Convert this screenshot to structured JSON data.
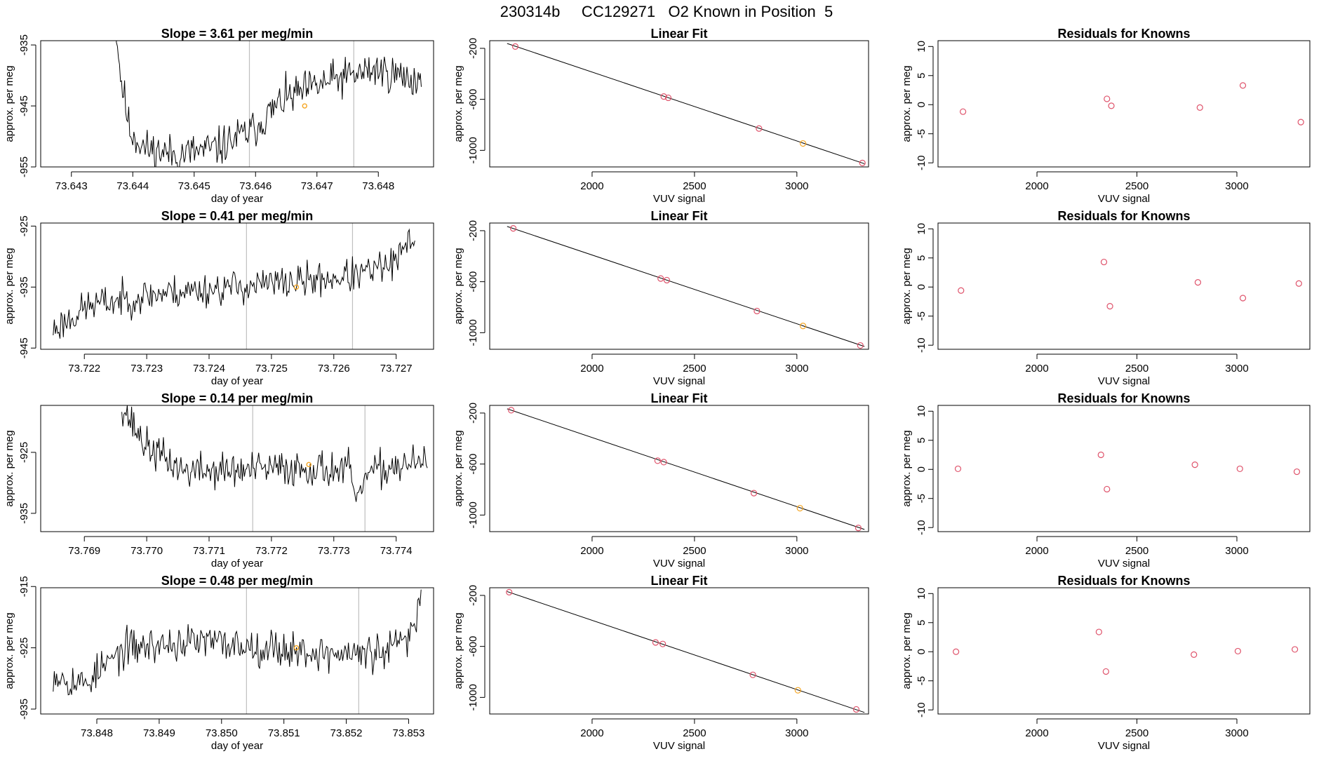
{
  "figure_title": "230314b     CC129271   O2 Known in Position  5",
  "colors": {
    "line": "#000000",
    "frame": "#000000",
    "vline": "#bfbfbf",
    "point": "#df536b",
    "highlight": "#f5a623"
  },
  "chart_data": [
    {
      "type": "line",
      "title": "Slope =  3.61  per meg/min",
      "xlabel": "day of year",
      "ylabel": "approx. per meg",
      "xlim": [
        73.6425,
        73.6489
      ],
      "ylim": [
        -955,
        -934.3
      ],
      "xticks": [
        "73.643",
        "73.644",
        "73.645",
        "73.646",
        "73.647",
        "73.648"
      ],
      "xtick_values": [
        73.643,
        73.644,
        73.645,
        73.646,
        73.647,
        73.648
      ],
      "yticks": [
        "-935",
        "-945",
        "-955"
      ],
      "ytick_values": [
        -935,
        -945,
        -955
      ],
      "vlines": [
        73.6459,
        73.6476
      ],
      "highlight": {
        "x": 73.6468,
        "y": -945
      },
      "series": {
        "seed": 11,
        "x_start": 73.6437,
        "x_end": 73.6487,
        "knots": [
          [
            0,
            -929
          ],
          [
            0.02,
            -940
          ],
          [
            0.05,
            -949
          ],
          [
            0.1,
            -952
          ],
          [
            0.2,
            -953
          ],
          [
            0.33,
            -952
          ],
          [
            0.45,
            -949
          ],
          [
            0.55,
            -944
          ],
          [
            0.7,
            -941
          ],
          [
            0.85,
            -939
          ],
          [
            1,
            -941
          ]
        ],
        "noise": 3.2,
        "n": 300
      }
    },
    {
      "type": "scatter",
      "title": "Linear Fit",
      "xlabel": "VUV signal",
      "ylabel": "approx. per meg",
      "xlim": [
        1500,
        3350
      ],
      "ylim": [
        -1130,
        -140
      ],
      "xticks": [
        "2000",
        "2500",
        "3000"
      ],
      "xtick_values": [
        2000,
        2500,
        3000
      ],
      "yticks": [
        "-200",
        "-600",
        "-1000"
      ],
      "ytick_values": [
        -200,
        -600,
        -1000
      ],
      "x": [
        1625,
        2350,
        2372,
        2815,
        3030,
        3320
      ],
      "y": [
        -186,
        -578,
        -588,
        -829,
        -946,
        -1099
      ],
      "highlight_index": 4,
      "fit": {
        "x": [
          1585,
          3330
        ],
        "y": [
          -162,
          -1105
        ]
      }
    },
    {
      "type": "scatter",
      "title": "Residuals for Knowns",
      "xlabel": "VUV signal",
      "ylabel": "approx. per meg",
      "xlim": [
        1505,
        3365
      ],
      "ylim": [
        -10.7,
        11
      ],
      "xticks": [
        "2000",
        "2500",
        "3000"
      ],
      "xtick_values": [
        2000,
        2500,
        3000
      ],
      "yticks": [
        "-10",
        "-5",
        "0",
        "5",
        "10"
      ],
      "ytick_values": [
        -10,
        -5,
        0,
        5,
        10
      ],
      "x": [
        1630,
        2350,
        2372,
        2815,
        3030,
        3320
      ],
      "y": [
        -1.2,
        1.0,
        -0.2,
        -0.5,
        3.3,
        -3.0
      ]
    },
    {
      "type": "line",
      "title": "Slope =  0.41  per meg/min",
      "xlabel": "day of year",
      "ylabel": "approx. per meg",
      "xlim": [
        73.7213,
        73.7276
      ],
      "ylim": [
        -945.2,
        -924.5
      ],
      "xticks": [
        "73.722",
        "73.723",
        "73.724",
        "73.725",
        "73.726",
        "73.727"
      ],
      "xtick_values": [
        73.722,
        73.723,
        73.724,
        73.725,
        73.726,
        73.727
      ],
      "yticks": [
        "-925",
        "-935",
        "-945"
      ],
      "ytick_values": [
        -925,
        -935,
        -945
      ],
      "vlines": [
        73.7246,
        73.7263
      ],
      "highlight": {
        "x": 73.7254,
        "y": -935
      },
      "series": {
        "seed": 23,
        "x_start": 73.7215,
        "x_end": 73.7273,
        "knots": [
          [
            0,
            -942
          ],
          [
            0.1,
            -938
          ],
          [
            0.3,
            -936
          ],
          [
            0.5,
            -935
          ],
          [
            0.7,
            -934
          ],
          [
            0.85,
            -933
          ],
          [
            0.95,
            -931
          ],
          [
            1,
            -926
          ]
        ],
        "noise": 2.8,
        "n": 320
      }
    },
    {
      "type": "scatter",
      "title": "Linear Fit",
      "xlabel": "VUV signal",
      "ylabel": "approx. per meg",
      "xlim": [
        1500,
        3350
      ],
      "ylim": [
        -1130,
        -140
      ],
      "xticks": [
        "2000",
        "2500",
        "3000"
      ],
      "xtick_values": [
        2000,
        2500,
        3000
      ],
      "yticks": [
        "-200",
        "-600",
        "-1000"
      ],
      "ytick_values": [
        -200,
        -600,
        -1000
      ],
      "x": [
        1615,
        2335,
        2365,
        2805,
        3030,
        3310
      ],
      "y": [
        -182,
        -575,
        -588,
        -830,
        -947,
        -1100
      ],
      "highlight_index": 4,
      "fit": {
        "x": [
          1585,
          3330
        ],
        "y": [
          -167,
          -1108
        ]
      }
    },
    {
      "type": "scatter",
      "title": "Residuals for Knowns",
      "xlabel": "VUV signal",
      "ylabel": "approx. per meg",
      "xlim": [
        1505,
        3365
      ],
      "ylim": [
        -10.7,
        11
      ],
      "xticks": [
        "2000",
        "2500",
        "3000"
      ],
      "xtick_values": [
        2000,
        2500,
        3000
      ],
      "yticks": [
        "-10",
        "-5",
        "0",
        "5",
        "10"
      ],
      "ytick_values": [
        -10,
        -5,
        0,
        5,
        10
      ],
      "x": [
        1620,
        2335,
        2365,
        2805,
        3030,
        3310
      ],
      "y": [
        -0.6,
        4.3,
        -3.3,
        0.8,
        -1.9,
        0.6
      ]
    },
    {
      "type": "line",
      "title": "Slope =  0.14  per meg/min",
      "xlabel": "day of year",
      "ylabel": "approx. per meg",
      "xlim": [
        73.7683,
        73.7746
      ],
      "ylim": [
        -938,
        -917.3
      ],
      "xticks": [
        "73.769",
        "73.770",
        "73.771",
        "73.772",
        "73.773",
        "73.774"
      ],
      "xtick_values": [
        73.769,
        73.77,
        73.771,
        73.772,
        73.773,
        73.774
      ],
      "yticks": [
        "-925",
        "-935"
      ],
      "ytick_values": [
        -925,
        -935
      ],
      "vlines": [
        73.7717,
        73.7735
      ],
      "highlight": {
        "x": 73.7726,
        "y": -927
      },
      "series": {
        "seed": 37,
        "x_start": 73.7696,
        "x_end": 73.7745,
        "knots": [
          [
            0,
            -917
          ],
          [
            0.03,
            -920
          ],
          [
            0.08,
            -924
          ],
          [
            0.2,
            -928
          ],
          [
            0.4,
            -928
          ],
          [
            0.6,
            -927.5
          ],
          [
            0.75,
            -928
          ],
          [
            0.77,
            -935
          ],
          [
            0.79,
            -929
          ],
          [
            0.9,
            -927
          ],
          [
            1,
            -927
          ]
        ],
        "noise": 3.0,
        "n": 280
      }
    },
    {
      "type": "scatter",
      "title": "Linear Fit",
      "xlabel": "VUV signal",
      "ylabel": "approx. per meg",
      "xlim": [
        1500,
        3350
      ],
      "ylim": [
        -1130,
        -140
      ],
      "xticks": [
        "2000",
        "2500",
        "3000"
      ],
      "xtick_values": [
        2000,
        2500,
        3000
      ],
      "yticks": [
        "-200",
        "-600",
        "-1000"
      ],
      "ytick_values": [
        -200,
        -600,
        -1000
      ],
      "x": [
        1605,
        2320,
        2350,
        2790,
        3015,
        3300
      ],
      "y": [
        -178,
        -574,
        -585,
        -828,
        -946,
        -1101
      ],
      "highlight_index": 4,
      "fit": {
        "x": [
          1585,
          3330
        ],
        "y": [
          -167,
          -1113
        ]
      }
    },
    {
      "type": "scatter",
      "title": "Residuals for Knowns",
      "xlabel": "VUV signal",
      "ylabel": "approx. per meg",
      "xlim": [
        1505,
        3365
      ],
      "ylim": [
        -10.7,
        11
      ],
      "xticks": [
        "2000",
        "2500",
        "3000"
      ],
      "xtick_values": [
        2000,
        2500,
        3000
      ],
      "yticks": [
        "-10",
        "-5",
        "0",
        "5",
        "10"
      ],
      "ytick_values": [
        -10,
        -5,
        0,
        5,
        10
      ],
      "x": [
        1605,
        2320,
        2350,
        2790,
        3015,
        3300
      ],
      "y": [
        0.1,
        2.5,
        -3.4,
        0.8,
        0.1,
        -0.4
      ]
    },
    {
      "type": "line",
      "title": "Slope =  0.48  per meg/min",
      "xlabel": "day of year",
      "ylabel": "approx. per meg",
      "xlim": [
        73.8471,
        73.8534
      ],
      "ylim": [
        -935.8,
        -915.2
      ],
      "xticks": [
        "73.848",
        "73.849",
        "73.850",
        "73.851",
        "73.852",
        "73.853"
      ],
      "xtick_values": [
        73.848,
        73.849,
        73.85,
        73.851,
        73.852,
        73.853
      ],
      "yticks": [
        "-915",
        "-925",
        "-935"
      ],
      "ytick_values": [
        -915,
        -925,
        -935
      ],
      "vlines": [
        73.8504,
        73.8522
      ],
      "highlight": {
        "x": 73.8512,
        "y": -925
      },
      "series": {
        "seed": 53,
        "x_start": 73.8473,
        "x_end": 73.8532,
        "knots": [
          [
            0,
            -929
          ],
          [
            0.08,
            -931
          ],
          [
            0.2,
            -925
          ],
          [
            0.4,
            -924
          ],
          [
            0.6,
            -925
          ],
          [
            0.75,
            -926
          ],
          [
            0.9,
            -926
          ],
          [
            0.97,
            -923
          ],
          [
            1,
            -917
          ]
        ],
        "noise": 3.0,
        "n": 320
      }
    },
    {
      "type": "scatter",
      "title": "Linear Fit",
      "xlabel": "VUV signal",
      "ylabel": "approx. per meg",
      "xlim": [
        1500,
        3350
      ],
      "ylim": [
        -1130,
        -140
      ],
      "xticks": [
        "2000",
        "2500",
        "3000"
      ],
      "xtick_values": [
        2000,
        2500,
        3000
      ],
      "yticks": [
        "-200",
        "-600",
        "-1000"
      ],
      "ytick_values": [
        -200,
        -600,
        -1000
      ],
      "x": [
        1595,
        2310,
        2345,
        2785,
        3005,
        3290
      ],
      "y": [
        -175,
        -569,
        -581,
        -823,
        -944,
        -1094
      ],
      "highlight_index": 4,
      "fit": {
        "x": [
          1585,
          3330
        ],
        "y": [
          -170,
          -1118
        ]
      }
    },
    {
      "type": "scatter",
      "title": "Residuals for Knowns",
      "xlabel": "VUV signal",
      "ylabel": "approx. per meg",
      "xlim": [
        1505,
        3365
      ],
      "ylim": [
        -10.7,
        11
      ],
      "xticks": [
        "2000",
        "2500",
        "3000"
      ],
      "xtick_values": [
        2000,
        2500,
        3000
      ],
      "yticks": [
        "-10",
        "-5",
        "0",
        "5",
        "10"
      ],
      "ytick_values": [
        -10,
        -5,
        0,
        5,
        10
      ],
      "x": [
        1595,
        2310,
        2345,
        2785,
        3005,
        3290
      ],
      "y": [
        0.0,
        3.4,
        -3.4,
        -0.5,
        0.1,
        0.4
      ]
    }
  ]
}
